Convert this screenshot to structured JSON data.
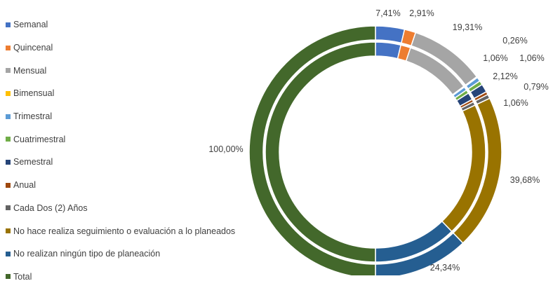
{
  "chart_data": {
    "type": "pie",
    "subtype": "doughnut",
    "legend_position": "left",
    "categories": [
      "Semanal",
      "Quincenal",
      "Mensual",
      "Bimensual",
      "Trimestral",
      "Cuatrimestral",
      "Semestral",
      "Anual",
      "Cada Dos (2) Años",
      "No hace realiza seguimiento o evaluación a lo planeados",
      "No realizan ningún tipo de planeación",
      "Total"
    ],
    "colors": [
      "#4472c4",
      "#ed7d31",
      "#a5a5a5",
      "#ffc000",
      "#5b9bd5",
      "#70ad47",
      "#264478",
      "#9e480e",
      "#636363",
      "#997300",
      "#255e91",
      "#43682b"
    ],
    "series": [
      {
        "ring": "outer",
        "values": [
          7.41,
          2.91,
          19.31,
          0.26,
          1.06,
          1.06,
          2.12,
          0.79,
          1.06,
          39.68,
          24.34,
          100.0
        ]
      },
      {
        "ring": "inner",
        "values": [
          7.41,
          2.91,
          19.31,
          0.26,
          1.06,
          1.06,
          2.12,
          0.79,
          1.06,
          39.68,
          24.34,
          100.0
        ]
      }
    ],
    "data_labels": [
      "7,41%",
      "2,91%",
      "19,31%",
      "0,26%",
      "1,06%",
      "1,06%",
      "2,12%",
      "0,79%",
      "1,06%",
      "39,68%",
      "24,34%",
      "100,00%"
    ]
  }
}
